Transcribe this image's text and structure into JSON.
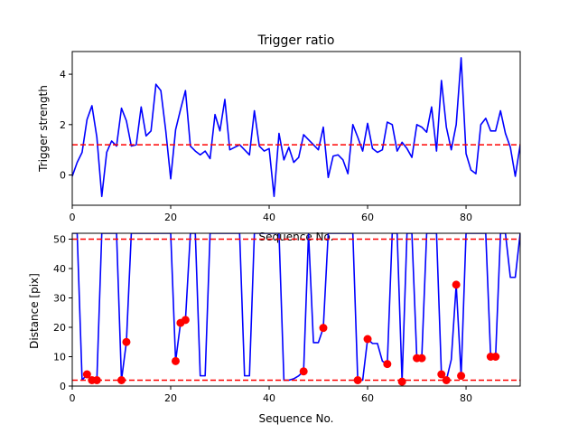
{
  "figure_colors": {
    "line": "#0000ff",
    "threshold": "#ff0000",
    "marker": "#ff0000",
    "frame": "#000000"
  },
  "chart_data": [
    {
      "type": "line",
      "title": "Trigger ratio",
      "xlabel": "Sequence No.",
      "ylabel": "Trigger strength",
      "xlim": [
        0,
        91
      ],
      "ylim": [
        -1.2,
        4.9
      ],
      "xticks": [
        0,
        20,
        40,
        60,
        80
      ],
      "yticks": [
        0,
        2,
        4
      ],
      "grid": false,
      "series": [
        {
          "color": "#0000ff",
          "x": [
            0,
            1,
            2,
            3,
            4,
            5,
            6,
            7,
            8,
            9,
            10,
            11,
            12,
            13,
            14,
            15,
            16,
            17,
            18,
            19,
            20,
            21,
            22,
            23,
            24,
            25,
            26,
            27,
            28,
            29,
            30,
            31,
            32,
            33,
            34,
            35,
            36,
            37,
            38,
            39,
            40,
            41,
            42,
            43,
            44,
            45,
            46,
            47,
            48,
            49,
            50,
            51,
            52,
            53,
            54,
            55,
            56,
            57,
            58,
            59,
            60,
            61,
            62,
            63,
            64,
            65,
            66,
            67,
            68,
            69,
            70,
            71,
            72,
            73,
            74,
            75,
            76,
            77,
            78,
            79,
            80,
            81,
            82,
            83,
            84,
            85,
            86,
            87,
            88,
            89,
            90,
            91
          ],
          "values": [
            -0.05,
            0.5,
            0.9,
            2.2,
            2.75,
            1.5,
            -0.85,
            0.9,
            1.35,
            1.15,
            2.65,
            2.15,
            1.15,
            1.2,
            2.7,
            1.55,
            1.75,
            3.6,
            3.35,
            1.75,
            -0.15,
            1.8,
            2.6,
            3.35,
            1.15,
            0.95,
            0.8,
            0.95,
            0.65,
            2.4,
            1.75,
            3.0,
            1.0,
            1.1,
            1.2,
            1.0,
            0.8,
            2.55,
            1.15,
            0.95,
            1.05,
            -0.85,
            1.65,
            0.6,
            1.1,
            0.5,
            0.7,
            1.6,
            1.4,
            1.2,
            1.0,
            1.9,
            -0.1,
            0.75,
            0.8,
            0.6,
            0.05,
            2.0,
            1.5,
            0.95,
            2.05,
            1.05,
            0.9,
            1.0,
            2.1,
            2.0,
            0.95,
            1.3,
            1.05,
            0.7,
            2.0,
            1.9,
            1.7,
            2.7,
            0.95,
            3.75,
            1.9,
            1.0,
            2.0,
            4.65,
            0.85,
            0.2,
            0.05,
            2.0,
            2.25,
            1.75,
            1.75,
            2.55,
            1.65,
            1.1,
            -0.05,
            1.2
          ]
        }
      ],
      "reference_lines": [
        {
          "y": 1.2,
          "color": "#ff0000",
          "style": "dashed"
        }
      ]
    },
    {
      "type": "line",
      "xlabel": "Sequence No.",
      "ylabel": "Distance [pix]",
      "xlim": [
        0,
        91
      ],
      "ylim": [
        0,
        52
      ],
      "xticks": [
        0,
        20,
        40,
        60,
        80
      ],
      "yticks": [
        0,
        10,
        20,
        30,
        40,
        50
      ],
      "grid": false,
      "series": [
        {
          "color": "#0000ff",
          "x": [
            0,
            1,
            2,
            3,
            4,
            5,
            6,
            7,
            8,
            9,
            10,
            11,
            12,
            13,
            14,
            15,
            16,
            17,
            18,
            19,
            20,
            21,
            22,
            23,
            24,
            25,
            26,
            27,
            28,
            29,
            30,
            31,
            32,
            33,
            34,
            35,
            36,
            37,
            38,
            39,
            40,
            41,
            42,
            43,
            44,
            45,
            46,
            47,
            48,
            49,
            50,
            51,
            52,
            53,
            54,
            55,
            56,
            57,
            58,
            59,
            60,
            61,
            62,
            63,
            64,
            65,
            66,
            67,
            68,
            69,
            70,
            71,
            72,
            73,
            74,
            75,
            76,
            77,
            78,
            79,
            80,
            81,
            82,
            83,
            84,
            85,
            86,
            87,
            88,
            89,
            90,
            91
          ],
          "values": [
            52,
            52,
            2,
            4,
            2,
            2,
            52,
            52,
            52,
            52,
            2,
            15,
            52,
            52,
            52,
            52,
            52,
            52,
            52,
            52,
            52,
            8.5,
            21.5,
            22.5,
            52,
            52,
            3.5,
            3.5,
            52,
            52,
            52,
            52,
            52,
            52,
            52,
            3.5,
            3.5,
            52,
            52,
            52,
            52,
            52,
            52,
            2,
            2,
            2.5,
            3.5,
            5,
            52,
            14.8,
            14.8,
            19.8,
            52,
            52,
            52,
            52,
            52,
            52,
            2,
            2,
            16,
            14.5,
            14.5,
            8.5,
            7.5,
            52,
            52,
            1.5,
            52,
            52,
            9.5,
            9.5,
            52,
            52,
            52,
            4,
            2,
            9,
            34.5,
            3.5,
            52,
            52,
            52,
            52,
            52,
            10,
            10,
            52,
            52,
            37,
            37,
            52
          ]
        }
      ],
      "markers": {
        "color": "#ff0000",
        "x": [
          3,
          4,
          5,
          10,
          11,
          21,
          22,
          23,
          47,
          51,
          58,
          60,
          64,
          67,
          70,
          71,
          75,
          76,
          78,
          79,
          85,
          86
        ],
        "values": [
          4,
          2,
          2,
          2,
          15,
          8.5,
          21.5,
          22.5,
          5,
          19.8,
          2,
          16,
          7.5,
          1.5,
          9.5,
          9.5,
          4,
          2,
          34.5,
          3.5,
          10,
          10
        ]
      },
      "reference_lines": [
        {
          "y": 50,
          "color": "#ff0000",
          "style": "dashed"
        },
        {
          "y": 2,
          "color": "#ff0000",
          "style": "dashed"
        }
      ]
    }
  ]
}
